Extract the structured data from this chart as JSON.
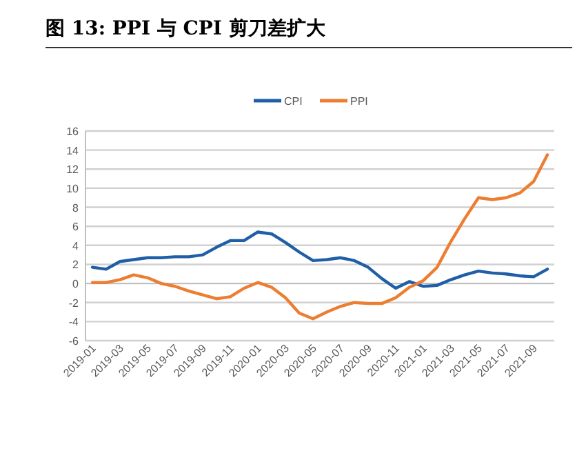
{
  "chart_data": {
    "type": "line",
    "title": "图 13: PPI 与 CPI 剪刀差扩大",
    "categories": [
      "2019-01",
      null,
      "2019-03",
      null,
      "2019-05",
      null,
      "2019-07",
      null,
      "2019-09",
      null,
      "2019-11",
      null,
      "2020-01",
      null,
      "2020-03",
      null,
      "2020-05",
      null,
      "2020-07",
      null,
      "2020-09",
      null,
      "2020-11",
      null,
      "2021-01",
      null,
      "2021-03",
      null,
      "2021-05",
      null,
      "2021-07",
      null,
      "2021-09",
      null
    ],
    "series": [
      {
        "name": "CPI",
        "color": "#1f5fa8",
        "values": [
          1.7,
          1.5,
          2.3,
          2.5,
          2.7,
          2.7,
          2.8,
          2.8,
          3.0,
          3.8,
          4.5,
          4.5,
          5.4,
          5.2,
          4.3,
          3.3,
          2.4,
          2.5,
          2.7,
          2.4,
          1.7,
          0.5,
          -0.5,
          0.2,
          -0.3,
          -0.2,
          0.4,
          0.9,
          1.3,
          1.1,
          1.0,
          0.8,
          0.7,
          1.5
        ]
      },
      {
        "name": "PPI",
        "color": "#ed7d31",
        "values": [
          0.1,
          0.1,
          0.4,
          0.9,
          0.6,
          0.0,
          -0.3,
          -0.8,
          -1.2,
          -1.6,
          -1.4,
          -0.5,
          0.1,
          -0.4,
          -1.5,
          -3.1,
          -3.7,
          -3.0,
          -2.4,
          -2.0,
          -2.1,
          -2.1,
          -1.5,
          -0.4,
          0.3,
          1.7,
          4.4,
          6.8,
          9.0,
          8.8,
          9.0,
          9.5,
          10.7,
          13.5
        ]
      }
    ],
    "ylim": [
      -6,
      16
    ],
    "yticks": [
      -6,
      -4,
      -2,
      0,
      2,
      4,
      6,
      8,
      10,
      12,
      14,
      16
    ],
    "grid": "y",
    "legend": "top"
  }
}
